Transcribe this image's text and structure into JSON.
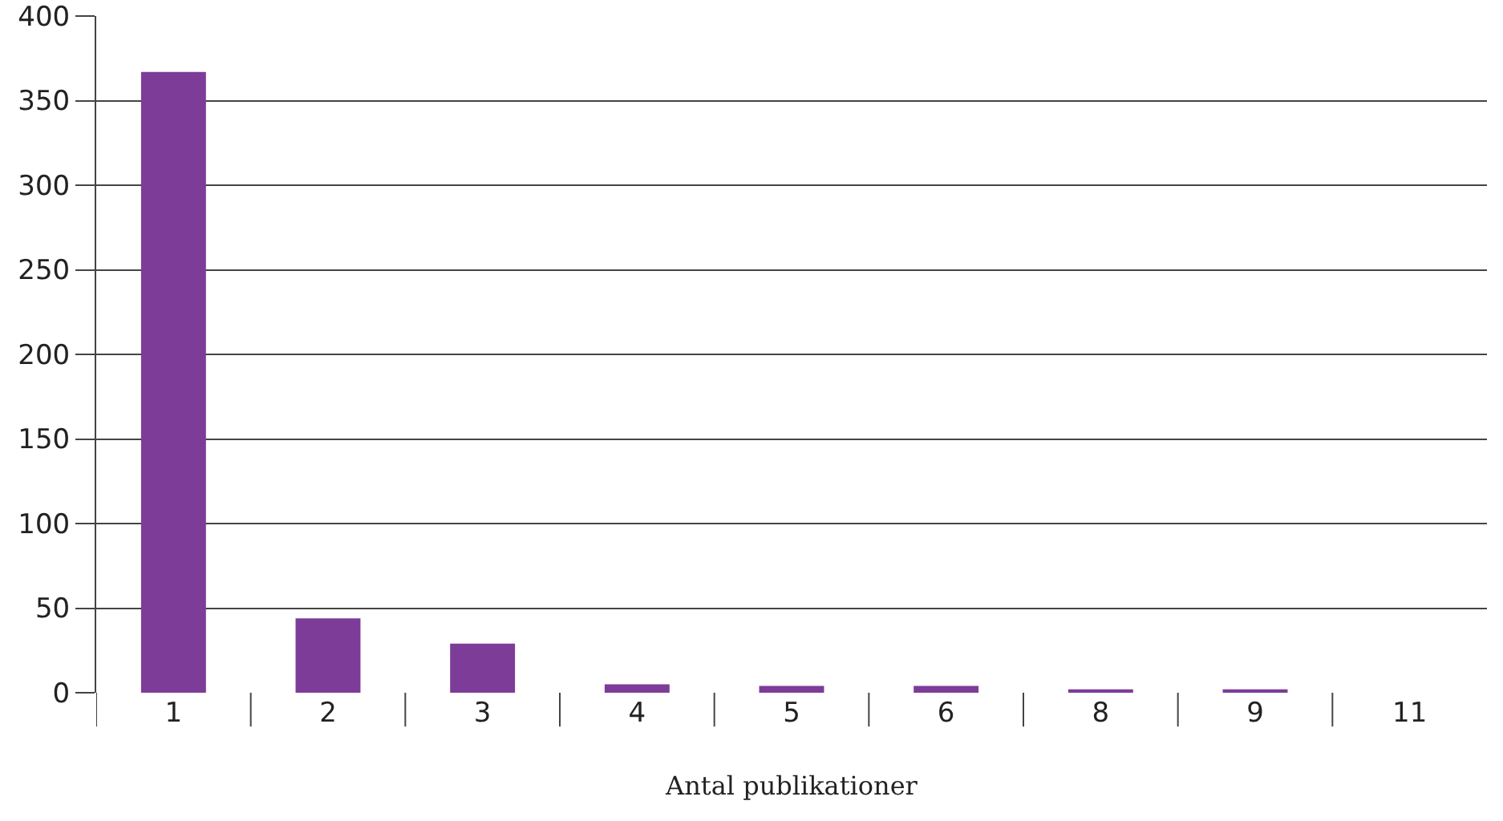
{
  "chart_data": {
    "type": "bar",
    "xlabel": "Antal publikationer",
    "categories": [
      "1",
      "2",
      "3",
      "4",
      "5",
      "6",
      "8",
      "9",
      "11"
    ],
    "values": [
      367,
      44,
      29,
      5,
      4,
      4,
      2,
      2,
      0
    ],
    "color": "#7d3c98",
    "ylim": [
      0,
      400
    ],
    "yticks": [
      0,
      50,
      100,
      150,
      200,
      250,
      300,
      350,
      400
    ],
    "grid": "y"
  }
}
